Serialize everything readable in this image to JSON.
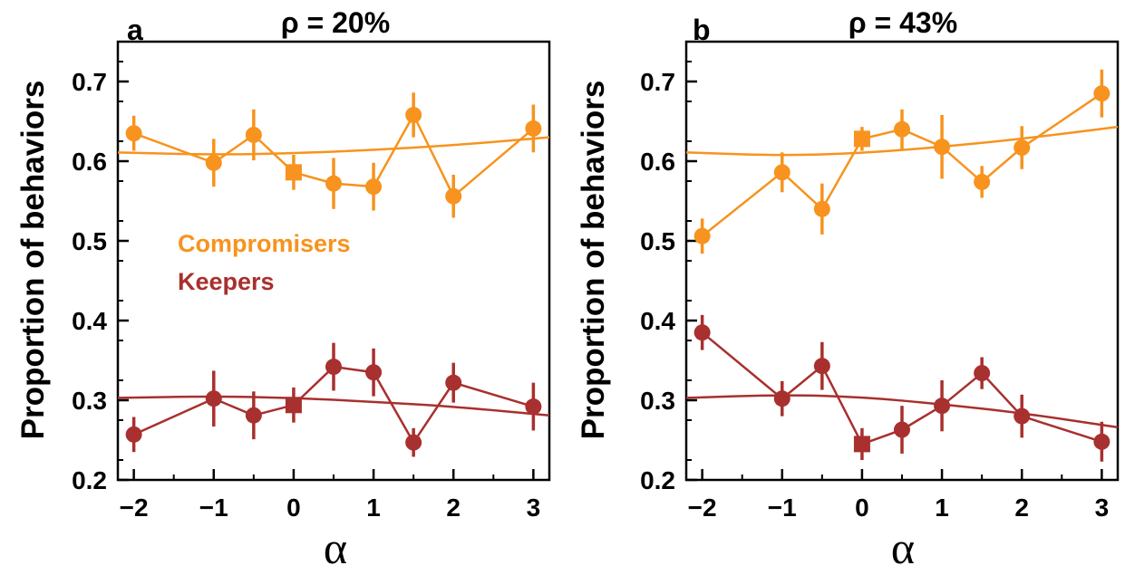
{
  "legend": {
    "compromisers": "Compromisers",
    "keepers": "Keepers"
  },
  "colors": {
    "compromisers": "#f7931e",
    "keepers": "#a8302e",
    "axis": "#000000"
  },
  "chart_data": [
    {
      "panel_label": "a",
      "title": "ρ = 20%",
      "type": "line",
      "xlabel": "α",
      "ylabel": "Proportion of behaviors",
      "xlim": [
        -2.2,
        3.2
      ],
      "ylim": [
        0.2,
        0.75
      ],
      "x_ticks": [
        -2,
        -1,
        0,
        1,
        2,
        3
      ],
      "x_tick_labels": [
        "−2",
        "−1",
        "0",
        "1",
        "2",
        "3"
      ],
      "y_ticks": [
        0.2,
        0.3,
        0.4,
        0.5,
        0.6,
        0.7
      ],
      "y_tick_labels": [
        "0.2",
        "0.3",
        "0.4",
        "0.5",
        "0.6",
        "0.7"
      ],
      "legend_position": "middle-left",
      "series": [
        {
          "name": "Compromisers",
          "x": [
            -2,
            -1,
            -0.5,
            0,
            0.5,
            1,
            1.5,
            2,
            3
          ],
          "y": [
            0.635,
            0.598,
            0.633,
            0.586,
            0.572,
            0.568,
            0.658,
            0.556,
            0.641
          ],
          "err": [
            0.022,
            0.03,
            0.032,
            0.022,
            0.032,
            0.03,
            0.028,
            0.027,
            0.03
          ],
          "square_marker_at": 0,
          "fit": {
            "x": [
              -2.2,
              -1,
              0,
              1,
              2,
              3.2
            ],
            "y": [
              0.611,
              0.608,
              0.61,
              0.614,
              0.62,
              0.63
            ]
          }
        },
        {
          "name": "Keepers",
          "x": [
            -2,
            -1,
            -0.5,
            0,
            0.5,
            1,
            1.5,
            2,
            3
          ],
          "y": [
            0.257,
            0.302,
            0.281,
            0.294,
            0.342,
            0.335,
            0.247,
            0.322,
            0.292
          ],
          "err": [
            0.022,
            0.035,
            0.03,
            0.022,
            0.03,
            0.03,
            0.018,
            0.025,
            0.03
          ],
          "square_marker_at": 0,
          "fit": {
            "x": [
              -2.2,
              -1,
              0,
              1,
              2,
              3.2
            ],
            "y": [
              0.303,
              0.305,
              0.303,
              0.298,
              0.292,
              0.281
            ]
          }
        }
      ]
    },
    {
      "panel_label": "b",
      "title": "ρ = 43%",
      "type": "line",
      "xlabel": "α",
      "ylabel": "Proportion of behaviors",
      "xlim": [
        -2.2,
        3.2
      ],
      "ylim": [
        0.2,
        0.75
      ],
      "x_ticks": [
        -2,
        -1,
        0,
        1,
        2,
        3
      ],
      "x_tick_labels": [
        "−2",
        "−1",
        "0",
        "1",
        "2",
        "3"
      ],
      "y_ticks": [
        0.2,
        0.3,
        0.4,
        0.5,
        0.6,
        0.7
      ],
      "y_tick_labels": [
        "0.2",
        "0.3",
        "0.4",
        "0.5",
        "0.6",
        "0.7"
      ],
      "series": [
        {
          "name": "Compromisers",
          "x": [
            -2,
            -1,
            -0.5,
            0,
            0.5,
            1,
            1.5,
            2,
            3
          ],
          "y": [
            0.506,
            0.586,
            0.54,
            0.628,
            0.64,
            0.618,
            0.574,
            0.617,
            0.685
          ],
          "err": [
            0.022,
            0.025,
            0.032,
            0.015,
            0.025,
            0.04,
            0.02,
            0.027,
            0.03
          ],
          "square_marker_at": 0,
          "fit": {
            "x": [
              -2.2,
              -1,
              0,
              1,
              2,
              3.2
            ],
            "y": [
              0.611,
              0.607,
              0.61,
              0.618,
              0.628,
              0.643
            ]
          }
        },
        {
          "name": "Keepers",
          "x": [
            -2,
            -1,
            -0.5,
            0,
            0.5,
            1,
            1.5,
            2,
            3
          ],
          "y": [
            0.385,
            0.302,
            0.343,
            0.245,
            0.263,
            0.293,
            0.334,
            0.28,
            0.248
          ],
          "err": [
            0.022,
            0.022,
            0.03,
            0.02,
            0.03,
            0.032,
            0.02,
            0.027,
            0.025
          ],
          "square_marker_at": 0,
          "fit": {
            "x": [
              -2.2,
              -1,
              0,
              1,
              2,
              3.2
            ],
            "y": [
              0.303,
              0.307,
              0.304,
              0.295,
              0.284,
              0.266
            ]
          }
        }
      ]
    }
  ]
}
